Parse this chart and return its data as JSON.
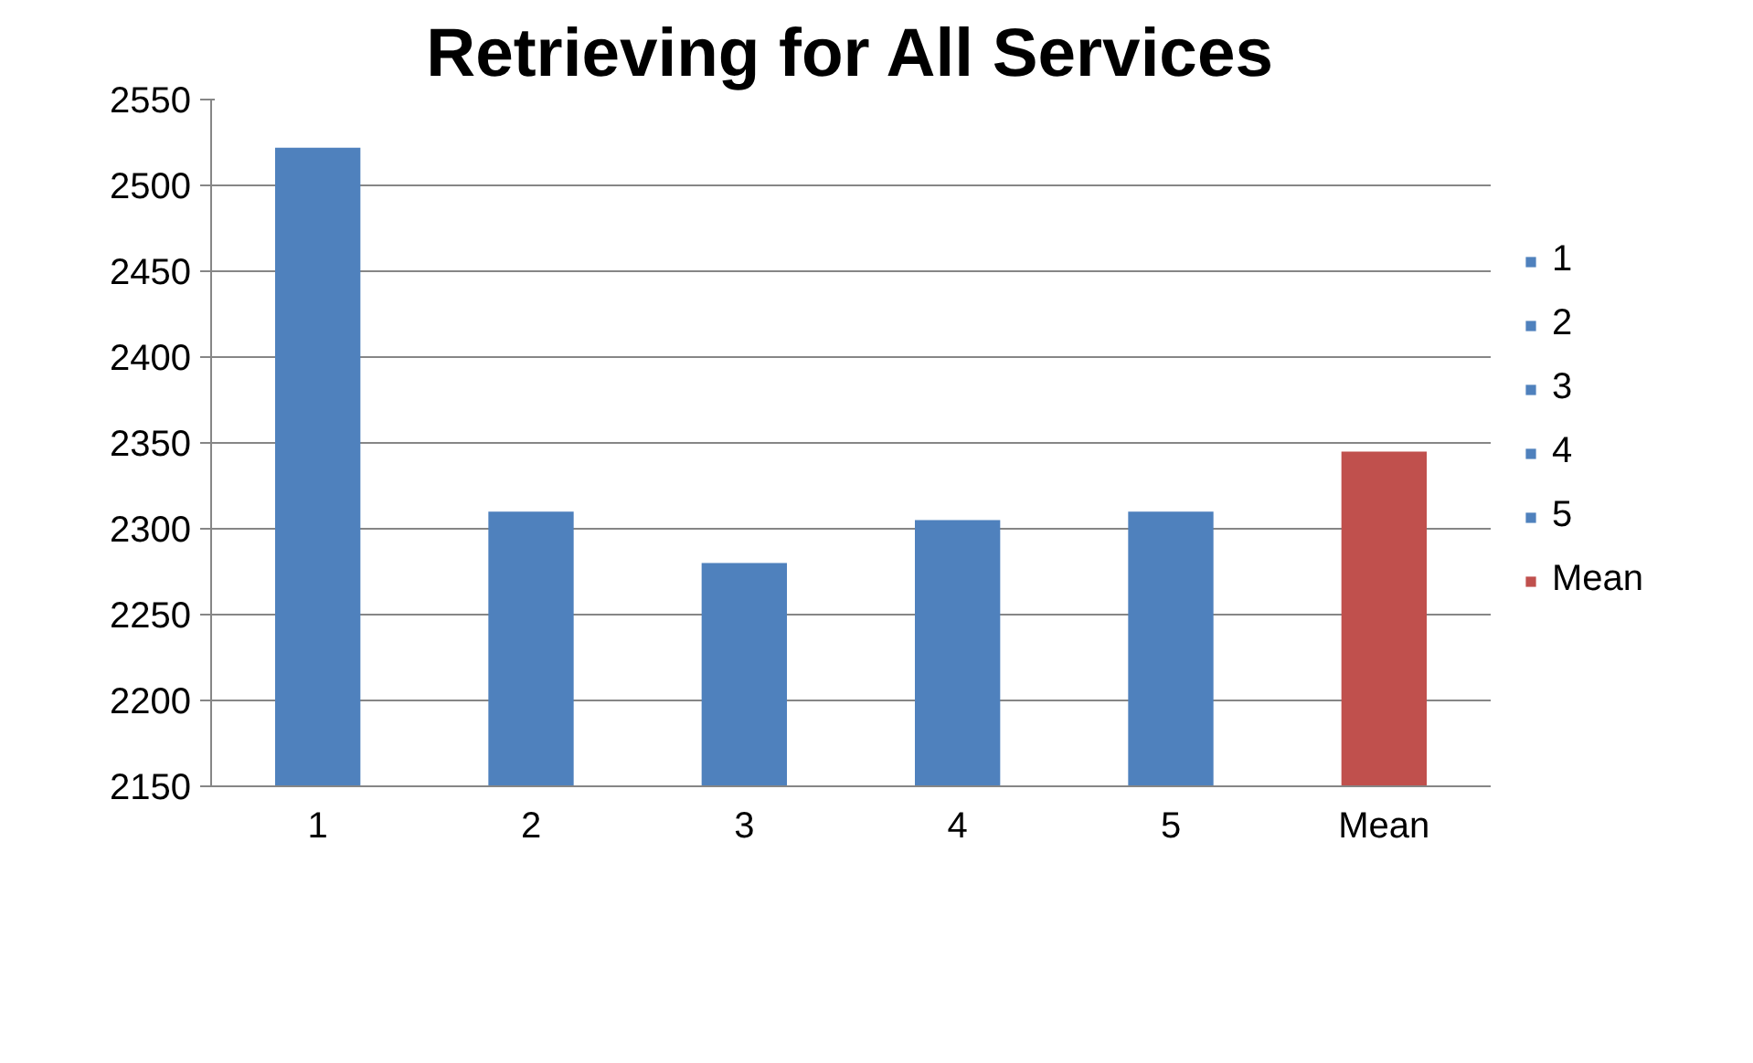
{
  "chart_data": {
    "type": "bar",
    "title": "Retrieving for All Services",
    "categories": [
      "1",
      "2",
      "3",
      "4",
      "5",
      "Mean"
    ],
    "series": [
      {
        "name": "1",
        "color": "#4f81bd",
        "values": [
          2522,
          null,
          null,
          null,
          null,
          null
        ]
      },
      {
        "name": "2",
        "color": "#4f81bd",
        "values": [
          null,
          2310,
          null,
          null,
          null,
          null
        ]
      },
      {
        "name": "3",
        "color": "#4f81bd",
        "values": [
          null,
          null,
          2280,
          null,
          null,
          null
        ]
      },
      {
        "name": "4",
        "color": "#4f81bd",
        "values": [
          null,
          null,
          null,
          2305,
          null,
          null
        ]
      },
      {
        "name": "5",
        "color": "#4f81bd",
        "values": [
          null,
          null,
          null,
          null,
          2310,
          null
        ]
      },
      {
        "name": "Mean",
        "color": "#c0504d",
        "values": [
          null,
          null,
          null,
          null,
          null,
          2345
        ]
      }
    ],
    "ylim": [
      2150,
      2550
    ],
    "yticks": [
      2150,
      2200,
      2250,
      2300,
      2350,
      2400,
      2450,
      2500,
      2550
    ],
    "grid": "y",
    "legend": "right"
  }
}
